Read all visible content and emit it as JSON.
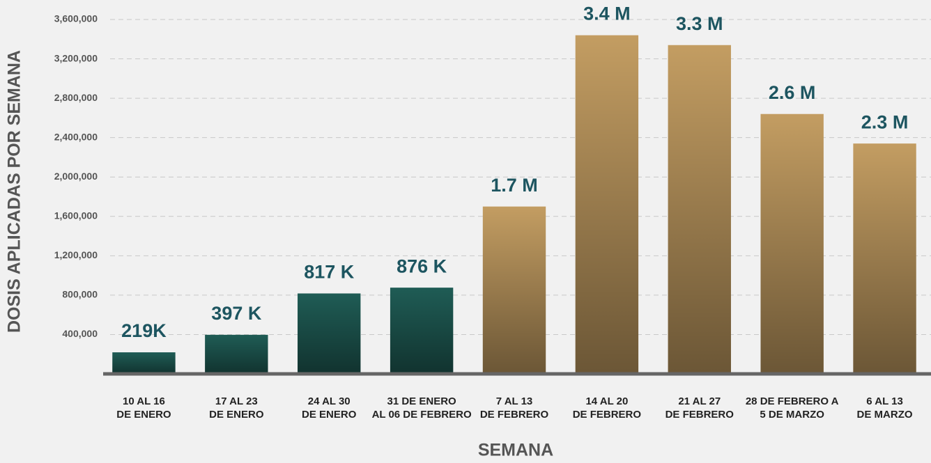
{
  "chart_data": {
    "type": "bar",
    "y_label": "DOSIS APLICADAS POR SEMANA",
    "x_label": "SEMANA",
    "categories": [
      [
        "10 AL 16",
        "DE ENERO"
      ],
      [
        "17 AL 23",
        "DE ENERO"
      ],
      [
        "24 AL 30",
        "DE ENERO"
      ],
      [
        "31  DE ENERO",
        "AL 06 DE FEBRERO"
      ],
      [
        "7 AL 13",
        "DE FEBRERO"
      ],
      [
        "14 AL 20",
        "DE FEBRERO"
      ],
      [
        "21  AL 27",
        "DE FEBRERO"
      ],
      [
        "28 DE FEBRERO A",
        "5 DE MARZO"
      ],
      [
        "6  AL 13",
        "DE MARZO"
      ]
    ],
    "values": [
      219000,
      397000,
      817000,
      876000,
      1700000,
      3440000,
      3340000,
      2640000,
      2340000
    ],
    "value_labels": [
      "219K",
      "397 K",
      "817 K",
      "876 K",
      "1.7 M",
      "3.4 M",
      "3.3 M",
      "2.6 M",
      "2.3 M"
    ],
    "colors": [
      "#1f5c55",
      "#1f5c55",
      "#1f5c55",
      "#1f5c55",
      "#c39d62",
      "#c39d62",
      "#c39d62",
      "#c39d62",
      "#c39d62"
    ],
    "ylim": [
      0,
      3600000
    ],
    "yticks": [
      {
        "value": 400000,
        "label": "400,000"
      },
      {
        "value": 800000,
        "label": "800,000"
      },
      {
        "value": 1200000,
        "label": "1,200,000"
      },
      {
        "value": 1600000,
        "label": "1,600,000"
      },
      {
        "value": 2000000,
        "label": "2,000,000"
      },
      {
        "value": 2400000,
        "label": "2,400,000"
      },
      {
        "value": 2800000,
        "label": "2,800,000"
      },
      {
        "value": 3200000,
        "label": "3,200,000"
      },
      {
        "value": 3600000,
        "label": "3,600,000"
      }
    ],
    "grid": true
  }
}
